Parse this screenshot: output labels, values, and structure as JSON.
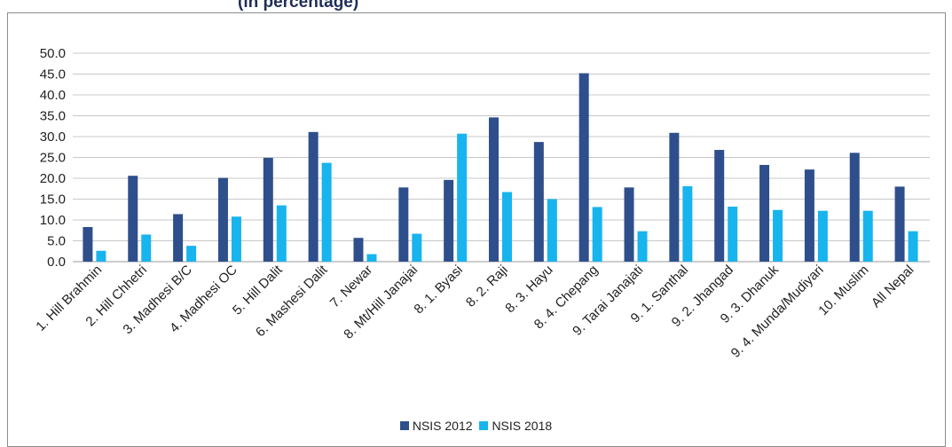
{
  "header_fragment": "(in percentage)",
  "chart_data": {
    "type": "bar",
    "categories": [
      "1. Hill Brahmin",
      "2. Hill Chhetri",
      "3. Madhesi B/C",
      "4. Madhesi OC",
      "5. Hill Dalit",
      "6. Mashesi Dalit",
      "7. Newar",
      "8. Mt/Hill Janajai",
      "8. 1. Byasi",
      "8. 2. Raji",
      "8. 3. Hayu",
      "8. 4. Chepang",
      "9. Tarai Janajati",
      "9. 1. Santhal",
      "9. 2. Jhangad",
      "9. 3. Dhanuk",
      "9. 4. Munda/Mudiyari",
      "10. Muslim",
      "All Nepal"
    ],
    "series": [
      {
        "name": "NSIS 2012",
        "color": "#2e4f8c",
        "values": [
          8.3,
          20.6,
          11.4,
          20.1,
          24.9,
          31.1,
          5.7,
          17.8,
          19.6,
          34.6,
          28.7,
          45.2,
          17.8,
          30.9,
          26.8,
          23.2,
          22.1,
          26.1,
          18.0
        ]
      },
      {
        "name": "NSIS 2018",
        "color": "#18b4ee",
        "values": [
          2.6,
          6.5,
          3.8,
          10.8,
          13.5,
          23.7,
          1.8,
          6.7,
          30.7,
          16.7,
          15.0,
          13.1,
          7.3,
          18.1,
          13.2,
          12.4,
          12.2,
          12.2,
          7.3
        ]
      }
    ],
    "yticks": [
      "0.0",
      "5.0",
      "10.0",
      "15.0",
      "20.0",
      "25.0",
      "30.0",
      "35.0",
      "40.0",
      "45.0",
      "50.0"
    ],
    "ylim": [
      0,
      50
    ],
    "grid": true,
    "legend_position": "bottom"
  }
}
